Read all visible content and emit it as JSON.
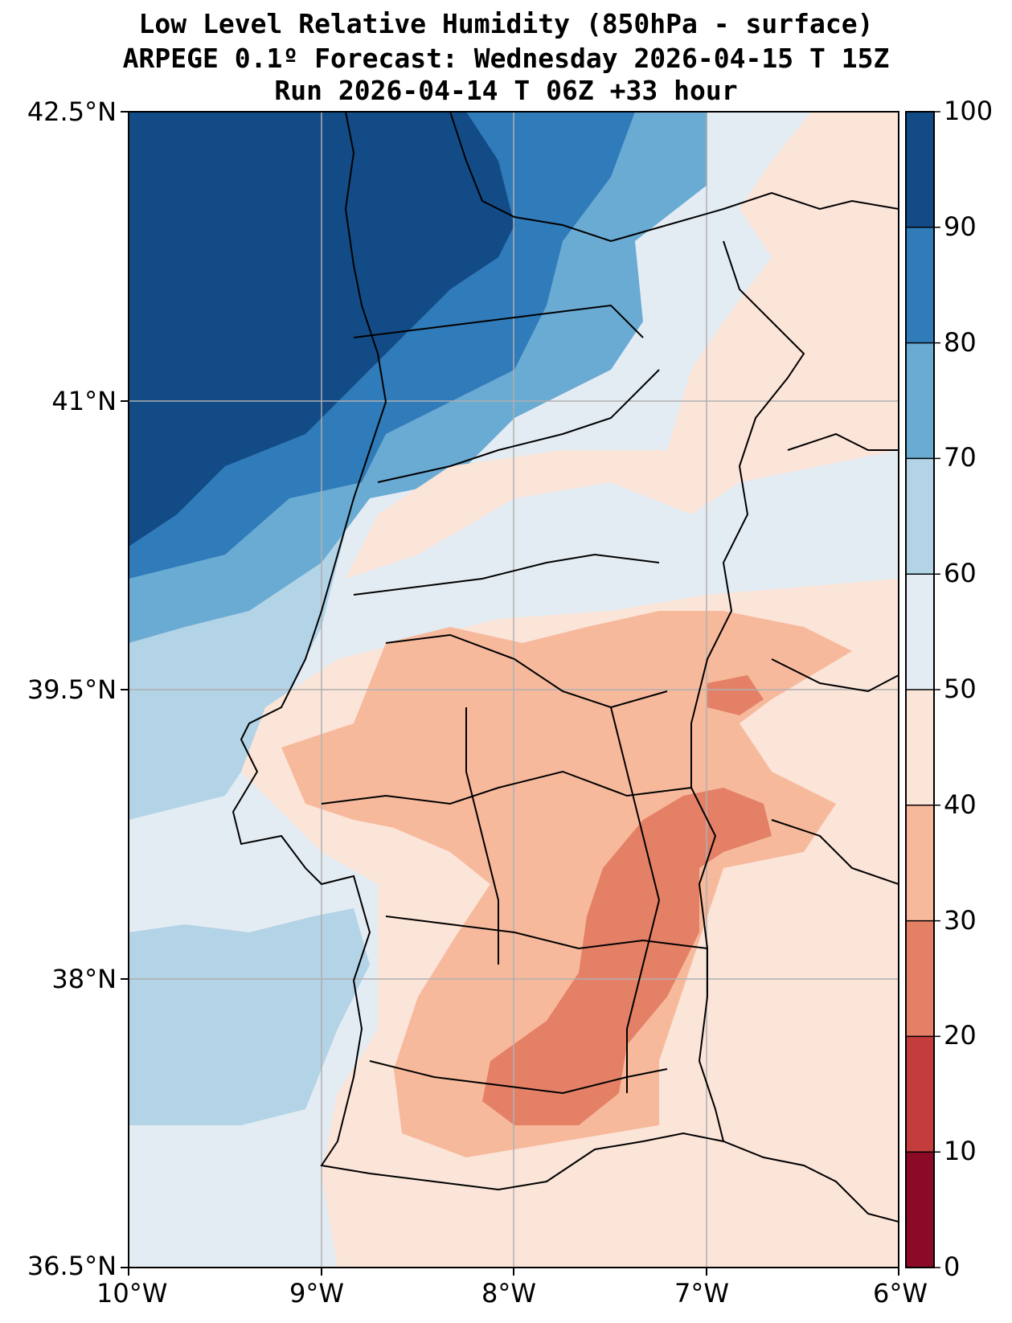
{
  "title": {
    "line1": "Low Level Relative Humidity (850hPa - surface)",
    "line2": "ARPEGE 0.1º Forecast: Wednesday 2026-04-15 T 15Z",
    "line3": "Run 2026-04-14 T 06Z +33 hour"
  },
  "map": {
    "extent": {
      "lon": [
        -10,
        -6
      ],
      "lat": [
        36.5,
        42.5
      ]
    },
    "lat_ticks": [
      "42.5°N",
      "41°N",
      "39.5°N",
      "38°N",
      "36.5°N"
    ],
    "lon_ticks": [
      "10°W",
      "9°W",
      "8°W",
      "7°W",
      "6°W"
    ],
    "gridlines": true
  },
  "colorbar": {
    "ticks": [
      "0",
      "10",
      "20",
      "30",
      "40",
      "50",
      "60",
      "70",
      "80",
      "90",
      "100"
    ],
    "colors": [
      "#8b0a26",
      "#c43c3c",
      "#e48066",
      "#f7b99c",
      "#fbe4d8",
      "#e4ecf3",
      "#b3d3e7",
      "#6aabd3",
      "#307bb9",
      "#134b86"
    ]
  },
  "palette": {
    "h90_100": "#134b86",
    "h80_90": "#307bb9",
    "h70_80": "#6aabd3",
    "h60_70": "#b3d3e7",
    "h50_60": "#e4ecf3",
    "h40_50": "#fbe4d8",
    "h30_40": "#f7b99c",
    "h20_30": "#e48066"
  }
}
